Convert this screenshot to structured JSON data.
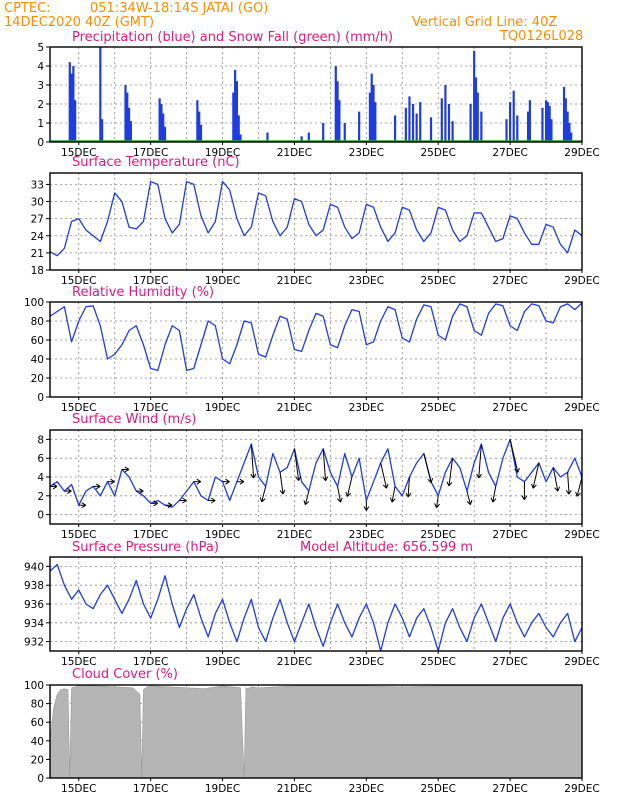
{
  "header": {
    "source": "CPTEC:",
    "location": "051:34W-18:14S   JATAI (GO)",
    "datetime": "14DEC2020 40Z (GMT)",
    "grid_note": "Vertical Grid Line: 40Z",
    "model": "TQ0126L028"
  },
  "colors": {
    "header": "#ff8c00",
    "titles": "#e0197d",
    "line": "#1f3ce0",
    "precip": "#1f3ce0",
    "snow": "#2aa02a",
    "cloud": "#b5b5b5",
    "wind_arrow": "#000000"
  },
  "x_axis": {
    "labels": [
      "15DEC",
      "17DEC",
      "19DEC",
      "21DEC",
      "23DEC",
      "25DEC",
      "27DEC",
      "29DEC"
    ],
    "day_range": [
      14.2,
      29.0
    ]
  },
  "chart_data": [
    {
      "type": "bar",
      "title": "Precipitation (blue) and Snow Fall (green) (mm/h)",
      "yticks": [
        0,
        1,
        2,
        3,
        4,
        5
      ],
      "ylim": [
        0,
        5
      ],
      "series": [
        {
          "name": "Precipitation",
          "points": [
            [
              14.75,
              4.2
            ],
            [
              14.8,
              3.6
            ],
            [
              14.85,
              4.0
            ],
            [
              14.9,
              2.2
            ],
            [
              15.6,
              5.0
            ],
            [
              15.65,
              1.2
            ],
            [
              16.3,
              3.0
            ],
            [
              16.35,
              2.6
            ],
            [
              16.4,
              1.8
            ],
            [
              16.45,
              1.1
            ],
            [
              17.25,
              2.3
            ],
            [
              17.3,
              2.0
            ],
            [
              17.35,
              1.5
            ],
            [
              17.4,
              0.8
            ],
            [
              18.3,
              2.2
            ],
            [
              18.35,
              1.6
            ],
            [
              18.4,
              0.9
            ],
            [
              19.3,
              2.6
            ],
            [
              19.35,
              3.8
            ],
            [
              19.4,
              3.2
            ],
            [
              19.45,
              1.4
            ],
            [
              19.5,
              0.4
            ],
            [
              20.25,
              0.5
            ],
            [
              21.2,
              0.3
            ],
            [
              21.4,
              0.5
            ],
            [
              21.8,
              1.0
            ],
            [
              22.15,
              4.0
            ],
            [
              22.2,
              3.2
            ],
            [
              22.25,
              2.2
            ],
            [
              22.4,
              1.0
            ],
            [
              22.8,
              1.6
            ],
            [
              23.1,
              2.6
            ],
            [
              23.15,
              3.6
            ],
            [
              23.2,
              3.0
            ],
            [
              23.25,
              2.1
            ],
            [
              23.8,
              1.4
            ],
            [
              24.1,
              1.8
            ],
            [
              24.2,
              2.4
            ],
            [
              24.3,
              2.0
            ],
            [
              24.4,
              1.5
            ],
            [
              24.5,
              2.1
            ],
            [
              24.8,
              1.3
            ],
            [
              25.1,
              2.3
            ],
            [
              25.2,
              3.0
            ],
            [
              25.3,
              2.0
            ],
            [
              25.4,
              1.1
            ],
            [
              25.9,
              2.0
            ],
            [
              26.0,
              4.8
            ],
            [
              26.05,
              3.4
            ],
            [
              26.1,
              2.6
            ],
            [
              26.2,
              1.6
            ],
            [
              26.9,
              1.2
            ],
            [
              27.0,
              2.1
            ],
            [
              27.1,
              2.7
            ],
            [
              27.2,
              1.4
            ],
            [
              27.5,
              1.6
            ],
            [
              27.55,
              2.2
            ],
            [
              27.9,
              1.8
            ],
            [
              28.0,
              2.2
            ],
            [
              28.05,
              2.1
            ],
            [
              28.1,
              1.9
            ],
            [
              28.15,
              1.2
            ],
            [
              28.5,
              2.9
            ],
            [
              28.55,
              2.3
            ],
            [
              28.6,
              1.6
            ],
            [
              28.65,
              1.0
            ],
            [
              28.7,
              0.5
            ]
          ]
        },
        {
          "name": "Snow Fall",
          "values": "0"
        }
      ]
    },
    {
      "type": "line",
      "title": "Surface Temperature (nC)",
      "yticks": [
        18,
        21,
        24,
        27,
        30,
        33
      ],
      "ylim": [
        18,
        35
      ],
      "series": [
        {
          "name": "Surface Temperature",
          "x": [
            14.2,
            14.4,
            14.6,
            14.8,
            15.0,
            15.2,
            15.4,
            15.6,
            15.8,
            16.0,
            16.2,
            16.4,
            16.6,
            16.8,
            17.0,
            17.2,
            17.4,
            17.6,
            17.8,
            18.0,
            18.2,
            18.4,
            18.6,
            18.8,
            19.0,
            19.2,
            19.4,
            19.6,
            19.8,
            20.0,
            20.2,
            20.4,
            20.6,
            20.8,
            21.0,
            21.2,
            21.4,
            21.6,
            21.8,
            22.0,
            22.2,
            22.4,
            22.6,
            22.8,
            23.0,
            23.2,
            23.4,
            23.6,
            23.8,
            24.0,
            24.2,
            24.4,
            24.6,
            24.8,
            25.0,
            25.2,
            25.4,
            25.6,
            25.8,
            26.0,
            26.2,
            26.4,
            26.6,
            26.8,
            27.0,
            27.2,
            27.4,
            27.6,
            27.8,
            28.0,
            28.2,
            28.4,
            28.6,
            28.8,
            29.0
          ],
          "values": [
            21.2,
            20.5,
            21.8,
            26.5,
            27.0,
            25.0,
            24.0,
            23.0,
            26.5,
            31.5,
            30.0,
            25.5,
            25.2,
            26.5,
            33.5,
            33.0,
            27.0,
            24.5,
            26.0,
            33.5,
            33.0,
            27.5,
            24.5,
            26.5,
            33.5,
            32.0,
            27.0,
            24.0,
            25.5,
            31.5,
            31.0,
            26.5,
            24.0,
            25.5,
            30.5,
            30.0,
            26.0,
            24.0,
            25.0,
            29.5,
            29.0,
            25.5,
            23.5,
            24.5,
            29.5,
            29.0,
            25.5,
            23.0,
            24.5,
            29.0,
            28.5,
            25.0,
            23.0,
            24.5,
            29.0,
            28.5,
            25.0,
            23.0,
            24.0,
            28.0,
            28.0,
            25.5,
            23.0,
            23.5,
            27.5,
            27.0,
            24.5,
            22.5,
            22.5,
            26.0,
            25.5,
            22.5,
            21.0,
            25.0,
            24.0
          ]
        }
      ]
    },
    {
      "type": "line",
      "title": "Relative Humidity (%)",
      "yticks": [
        0,
        20,
        40,
        60,
        80,
        100
      ],
      "ylim": [
        0,
        100
      ],
      "series": [
        {
          "name": "Relative Humidity",
          "x": [
            14.2,
            14.4,
            14.6,
            14.8,
            15.0,
            15.2,
            15.4,
            15.6,
            15.8,
            16.0,
            16.2,
            16.4,
            16.6,
            16.8,
            17.0,
            17.2,
            17.4,
            17.6,
            17.8,
            18.0,
            18.2,
            18.4,
            18.6,
            18.8,
            19.0,
            19.2,
            19.4,
            19.6,
            19.8,
            20.0,
            20.2,
            20.4,
            20.6,
            20.8,
            21.0,
            21.2,
            21.4,
            21.6,
            21.8,
            22.0,
            22.2,
            22.4,
            22.6,
            22.8,
            23.0,
            23.2,
            23.4,
            23.6,
            23.8,
            24.0,
            24.2,
            24.4,
            24.6,
            24.8,
            25.0,
            25.2,
            25.4,
            25.6,
            25.8,
            26.0,
            26.2,
            26.4,
            26.6,
            26.8,
            27.0,
            27.2,
            27.4,
            27.6,
            27.8,
            28.0,
            28.2,
            28.4,
            28.6,
            28.8,
            29.0
          ],
          "values": [
            85,
            90,
            95,
            58,
            80,
            95,
            96,
            75,
            40,
            45,
            55,
            70,
            75,
            55,
            30,
            28,
            55,
            75,
            70,
            28,
            30,
            55,
            80,
            75,
            40,
            35,
            55,
            80,
            78,
            45,
            42,
            65,
            85,
            82,
            50,
            48,
            70,
            88,
            85,
            55,
            52,
            75,
            92,
            90,
            55,
            58,
            80,
            95,
            92,
            62,
            58,
            82,
            97,
            95,
            65,
            60,
            85,
            98,
            95,
            70,
            65,
            88,
            98,
            96,
            75,
            70,
            90,
            98,
            96,
            80,
            78,
            95,
            98,
            92,
            99
          ]
        }
      ]
    },
    {
      "type": "line",
      "title": "Surface Wind (m/s)",
      "yticks": [
        0,
        2,
        4,
        6,
        8
      ],
      "ylim": [
        -1,
        9
      ],
      "series": [
        {
          "name": "Surface Wind",
          "x": [
            14.2,
            14.4,
            14.6,
            14.8,
            15.0,
            15.2,
            15.4,
            15.6,
            15.8,
            16.0,
            16.2,
            16.4,
            16.6,
            16.8,
            17.0,
            17.2,
            17.4,
            17.6,
            17.8,
            18.0,
            18.2,
            18.4,
            18.6,
            18.8,
            19.0,
            19.2,
            19.4,
            19.6,
            19.8,
            20.0,
            20.2,
            20.4,
            20.6,
            20.8,
            21.0,
            21.2,
            21.4,
            21.6,
            21.8,
            22.0,
            22.2,
            22.4,
            22.6,
            22.8,
            23.0,
            23.2,
            23.4,
            23.6,
            23.8,
            24.0,
            24.2,
            24.4,
            24.6,
            24.8,
            25.0,
            25.2,
            25.4,
            25.6,
            25.8,
            26.0,
            26.2,
            26.4,
            26.6,
            26.8,
            27.0,
            27.2,
            27.4,
            27.6,
            27.8,
            28.0,
            28.2,
            28.4,
            28.6,
            28.8,
            29.0
          ],
          "values": [
            3.0,
            3.5,
            2.5,
            3.2,
            1.0,
            2.5,
            3.0,
            2.0,
            3.5,
            2.0,
            4.8,
            4.0,
            2.5,
            2.0,
            1.2,
            1.5,
            1.0,
            0.8,
            1.5,
            2.5,
            3.5,
            2.0,
            1.5,
            4.0,
            3.5,
            1.5,
            3.5,
            5.5,
            7.5,
            4.0,
            3.0,
            6.5,
            4.5,
            5.0,
            7.0,
            3.5,
            2.5,
            5.5,
            7.0,
            4.5,
            3.0,
            6.5,
            4.0,
            6.0,
            1.5,
            3.5,
            5.5,
            7.0,
            3.0,
            2.0,
            4.0,
            5.5,
            6.5,
            3.5,
            2.0,
            4.5,
            6.0,
            5.0,
            2.5,
            5.5,
            7.5,
            4.5,
            3.0,
            6.0,
            8.0,
            4.0,
            3.5,
            4.5,
            5.5,
            3.5,
            5.0,
            4.0,
            4.5,
            6.0,
            4.0
          ]
        }
      ]
    },
    {
      "type": "line",
      "title": "Surface Pressure (hPa)",
      "annotation": "Model Altitude: 656.599  m",
      "yticks": [
        932,
        934,
        936,
        938,
        940
      ],
      "ylim": [
        931,
        941
      ],
      "series": [
        {
          "name": "Surface Pressure",
          "x": [
            14.2,
            14.4,
            14.6,
            14.8,
            15.0,
            15.2,
            15.4,
            15.6,
            15.8,
            16.0,
            16.2,
            16.4,
            16.6,
            16.8,
            17.0,
            17.2,
            17.4,
            17.6,
            17.8,
            18.0,
            18.2,
            18.4,
            18.6,
            18.8,
            19.0,
            19.2,
            19.4,
            19.6,
            19.8,
            20.0,
            20.2,
            20.4,
            20.6,
            20.8,
            21.0,
            21.2,
            21.4,
            21.6,
            21.8,
            22.0,
            22.2,
            22.4,
            22.6,
            22.8,
            23.0,
            23.2,
            23.4,
            23.6,
            23.8,
            24.0,
            24.2,
            24.4,
            24.6,
            24.8,
            25.0,
            25.2,
            25.4,
            25.6,
            25.8,
            26.0,
            26.2,
            26.4,
            26.6,
            26.8,
            27.0,
            27.2,
            27.4,
            27.6,
            27.8,
            28.0,
            28.2,
            28.4,
            28.6,
            28.8,
            29.0
          ],
          "values": [
            939.5,
            940.2,
            938.0,
            936.5,
            937.5,
            936.0,
            935.5,
            937.0,
            938.0,
            936.5,
            935.0,
            936.5,
            938.5,
            936.0,
            934.5,
            936.5,
            939.0,
            936.0,
            933.5,
            935.5,
            937.0,
            934.5,
            932.5,
            935.0,
            936.5,
            934.0,
            932.0,
            934.5,
            936.5,
            933.5,
            932.0,
            934.5,
            936.5,
            934.0,
            932.0,
            934.0,
            936.0,
            933.5,
            931.5,
            934.0,
            936.0,
            934.0,
            932.5,
            934.5,
            936.0,
            934.0,
            931.0,
            934.0,
            936.0,
            934.5,
            932.5,
            934.5,
            935.5,
            933.5,
            931.0,
            934.0,
            935.5,
            933.5,
            932.0,
            934.5,
            936.0,
            934.0,
            932.0,
            934.5,
            936.0,
            934.0,
            932.5,
            934.0,
            935.0,
            933.5,
            932.5,
            934.0,
            935.0,
            932.0,
            933.5
          ]
        }
      ]
    },
    {
      "type": "area",
      "title": "Cloud Cover (%)",
      "yticks": [
        0,
        20,
        40,
        60,
        80,
        100
      ],
      "ylim": [
        0,
        100
      ],
      "series": [
        {
          "name": "Cloud Cover",
          "x": [
            14.2,
            14.3,
            14.4,
            14.5,
            14.6,
            14.7,
            14.75,
            14.8,
            14.9,
            15.0,
            15.5,
            16.0,
            16.5,
            16.7,
            16.75,
            16.8,
            16.9,
            17.0,
            17.5,
            18.0,
            18.5,
            19.0,
            19.5,
            19.6,
            19.65,
            19.7,
            19.8,
            20.0,
            21.0,
            22.0,
            23.0,
            24.0,
            25.0,
            26.0,
            27.0,
            28.0,
            29.0
          ],
          "values": [
            40,
            75,
            90,
            95,
            96,
            95,
            0,
            97,
            98,
            100,
            99,
            98,
            97,
            90,
            0,
            95,
            98,
            99,
            98,
            97,
            96,
            99,
            97,
            0,
            97,
            96,
            98,
            97,
            99,
            99,
            99,
            98,
            99,
            99,
            99,
            99,
            99
          ]
        }
      ]
    }
  ]
}
